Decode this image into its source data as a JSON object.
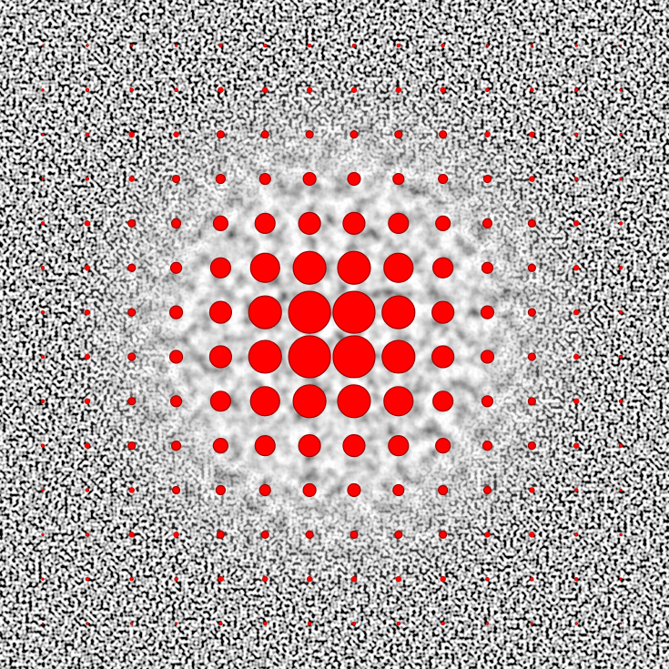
{
  "dots": {
    "rows": [
      [
        1,
        1.5,
        1.5,
        1.5,
        2,
        2,
        2,
        2,
        2,
        2,
        1.5,
        1.5,
        1.5,
        1
      ],
      [
        1.5,
        2,
        2,
        2,
        3,
        3,
        3,
        3,
        3,
        3,
        2,
        2,
        2,
        1.5
      ],
      [
        1.5,
        2,
        3,
        3,
        4,
        4,
        4,
        4,
        4,
        4,
        3,
        3,
        2,
        1.5
      ],
      [
        1.5,
        2,
        3,
        4,
        5,
        6,
        7,
        7,
        6,
        5,
        4,
        3,
        2,
        1.5
      ],
      [
        2,
        3,
        4,
        5,
        8,
        11,
        12,
        12,
        11,
        8,
        5,
        4,
        3,
        2
      ],
      [
        2,
        3,
        4,
        6,
        11,
        16,
        18,
        18,
        16,
        11,
        6,
        4,
        3,
        2
      ],
      [
        2,
        3,
        4,
        7,
        12,
        18,
        23,
        23,
        18,
        12,
        7,
        4,
        3,
        2
      ],
      [
        2,
        3,
        4,
        7,
        12,
        18,
        23,
        23,
        18,
        12,
        7,
        4,
        3,
        2
      ],
      [
        2,
        3,
        4,
        6,
        11,
        16,
        18,
        18,
        16,
        11,
        6,
        4,
        3,
        2
      ],
      [
        2,
        3,
        4,
        5,
        8,
        11,
        12,
        12,
        11,
        8,
        5,
        4,
        3,
        2
      ],
      [
        1.5,
        2,
        3,
        4,
        5,
        6,
        7,
        7,
        6,
        5,
        4,
        3,
        2,
        1.5
      ],
      [
        1.5,
        2,
        3,
        3,
        4,
        4,
        4,
        4,
        4,
        4,
        3,
        3,
        2,
        1.5
      ],
      [
        1.5,
        2,
        2,
        2,
        3,
        3,
        3,
        3,
        3,
        3,
        2,
        2,
        2,
        1.5
      ],
      [
        1,
        1.5,
        1.5,
        1.5,
        2,
        2,
        2,
        2,
        2,
        2,
        1.5,
        1.5,
        1.5,
        1
      ]
    ],
    "color": "#ff0000"
  }
}
